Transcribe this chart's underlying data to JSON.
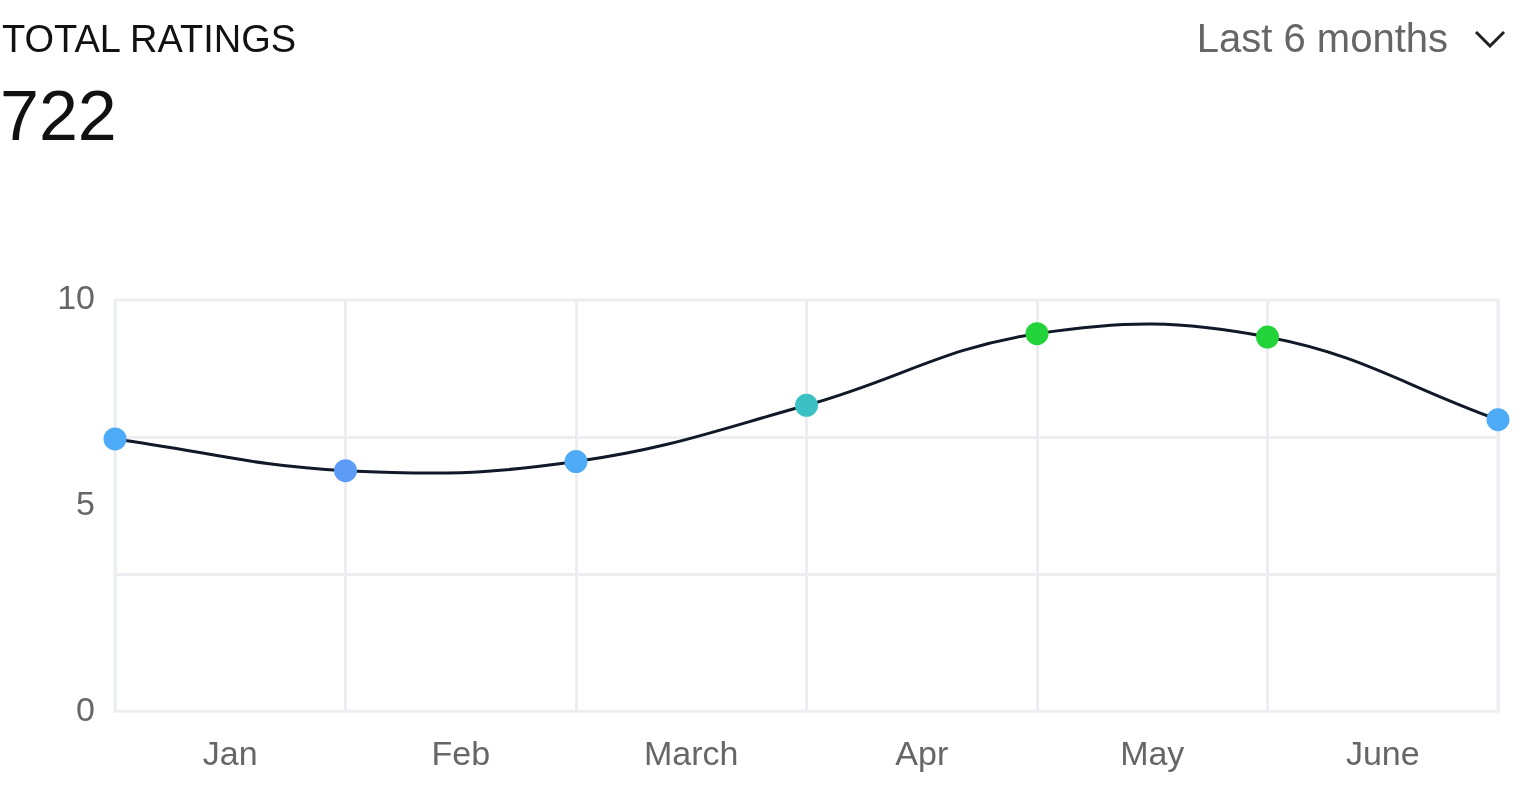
{
  "chart_data": {
    "type": "line",
    "title": "TOTAL RATINGS",
    "subtitle": "722",
    "annotations": [
      "Last 6 months"
    ],
    "categories": [
      null,
      "Jan",
      null,
      "Feb",
      null,
      "March",
      null,
      "Apr",
      null,
      "May",
      null,
      "June",
      null
    ],
    "series": [
      {
        "color": "#111827",
        "values": [
          6.62,
          null,
          5.85,
          null,
          6.07,
          null,
          7.44,
          null,
          9.18,
          null,
          9.1,
          null,
          7.09
        ],
        "colors": [
          "#4dabf7",
          null,
          "#5c9cf7",
          null,
          "#4dabf7",
          null,
          "#3bc0c3",
          null,
          "#22d339",
          null,
          "#22d339",
          null,
          "#4dabf7"
        ]
      }
    ],
    "ylim": [
      0,
      10
    ],
    "yticks": [
      0,
      {
        "value": 3.333,
        "label": null
      },
      5,
      {
        "value": 6.667,
        "label": null
      },
      10
    ],
    "grid": true,
    "legend": false,
    "marker": "circle",
    "line_style": "solid"
  }
}
